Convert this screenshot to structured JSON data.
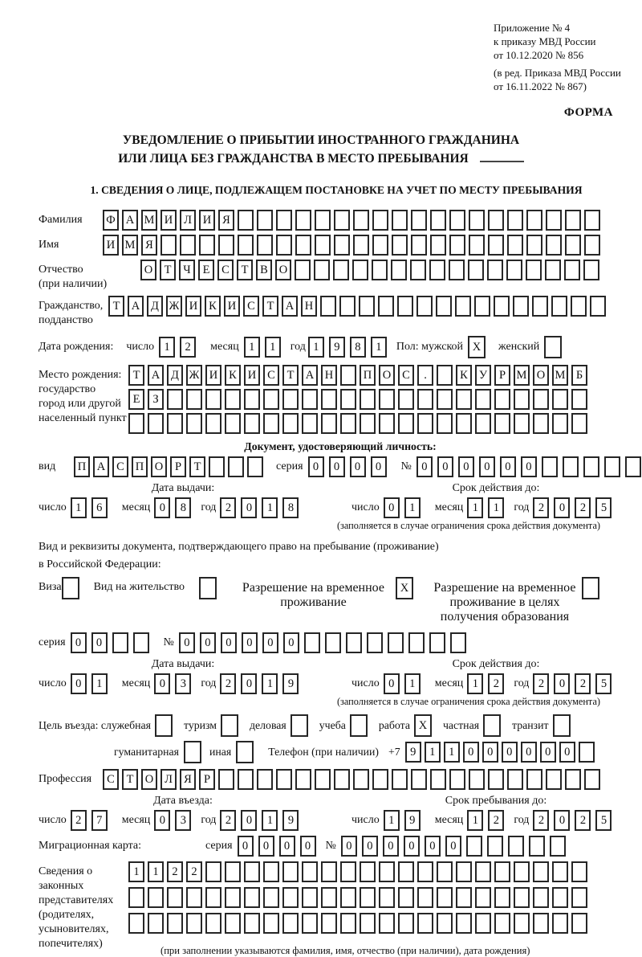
{
  "header": {
    "appendix_lines": [
      "Приложение № 4",
      "к приказу МВД России",
      "от 10.12.2020 № 856"
    ],
    "edition_lines": [
      "(в ред. Приказа МВД России",
      "от 16.11.2022 № 867)"
    ],
    "forma": "ФОРМА"
  },
  "title": {
    "line1": "УВЕДОМЛЕНИЕ О ПРИБЫТИИ ИНОСТРАННОГО ГРАЖДАНИНА",
    "line2": "ИЛИ ЛИЦА БЕЗ ГРАЖДАНСТВА В МЕСТО ПРЕБЫВАНИЯ"
  },
  "section1": {
    "heading": "1. СВЕДЕНИЯ О ЛИЦЕ, ПОДЛЕЖАЩЕМ ПОСТАНОВКЕ НА УЧЕТ ПО МЕСТУ ПРЕБЫВАНИЯ",
    "surname": {
      "label": "Фамилия",
      "boxes": {
        "chars": "ФАМИЛИЯ",
        "len": 26
      }
    },
    "firstname": {
      "label": "Имя",
      "boxes": {
        "chars": "ИМЯ",
        "len": 26
      }
    },
    "patronymic": {
      "label": "Отчество",
      "label2": "(при наличии)",
      "boxes": {
        "chars": "ОТЧЕСТВО",
        "len": 24
      }
    },
    "citizenship": {
      "label": "Гражданство,",
      "label2": "подданство",
      "boxes": {
        "chars": "ТАДЖИКИСТАН",
        "len": 26
      }
    },
    "birth": {
      "label": "Дата рождения:",
      "day_label": "число",
      "day": {
        "chars": "12",
        "len": 2
      },
      "month_label": "месяц",
      "month": {
        "chars": "11",
        "len": 2
      },
      "year_label": "год",
      "year": {
        "chars": "1981",
        "len": 4
      },
      "sex_label": "Пол: мужской",
      "male": {
        "chars": "X",
        "len": 1
      },
      "female_label": "женский",
      "female": {
        "chars": "",
        "len": 1
      }
    },
    "birthplace": {
      "label1": "Место рождения:",
      "label2": "государство",
      "label3": "город или другой",
      "label4": "населенный пункт",
      "row1": {
        "chars": "ТАДЖИКИСТАН ПОС. КУРМОМБ",
        "len": 24
      },
      "row2": {
        "chars": "ЕЗ",
        "len": 24
      },
      "row3": {
        "chars": "",
        "len": 24
      }
    },
    "identity_doc": {
      "heading": "Документ, удостоверяющий личность:",
      "kind_label": "вид",
      "kind": {
        "chars": "ПАСПОРТ",
        "len": 10
      },
      "series_label": "серия",
      "series": {
        "chars": "0000",
        "len": 4
      },
      "number_label": "№",
      "number": {
        "chars": "000000",
        "len": 11
      },
      "issue_heading": "Дата выдачи:",
      "issue_day_label": "число",
      "issue_day": {
        "chars": "16",
        "len": 2
      },
      "issue_month_label": "месяц",
      "issue_month": {
        "chars": "08",
        "len": 2
      },
      "issue_year_label": "год",
      "issue_year": {
        "chars": "2018",
        "len": 4
      },
      "expiry_heading": "Срок действия до:",
      "expiry_day_label": "число",
      "expiry_day": {
        "chars": "01",
        "len": 2
      },
      "expiry_month_label": "месяц",
      "expiry_month": {
        "chars": "11",
        "len": 2
      },
      "expiry_year_label": "год",
      "expiry_year": {
        "chars": "2025",
        "len": 4
      },
      "note": "(заполняется в случае ограничения срока действия документа)"
    },
    "residence_doc": {
      "intro1": "Вид и реквизиты документа, подтверждающего право на пребывание (проживание)",
      "intro2": "в Российской Федерации:",
      "visa_label": "Виза",
      "visa": {
        "chars": "",
        "len": 1
      },
      "residence_permit_label": "Вид на жительство",
      "residence_permit": {
        "chars": "",
        "len": 1
      },
      "temp_permit_label": "Разрешение на временное проживание",
      "temp_permit": {
        "chars": "X",
        "len": 1
      },
      "edu_permit_label": "Разрешение на временное проживание в целях получения образования",
      "edu_permit": {
        "chars": "",
        "len": 1
      },
      "series_label": "серия",
      "series": {
        "chars": "00",
        "len": 4
      },
      "number_label": "№",
      "number": {
        "chars": "000000",
        "len": 14
      },
      "issue_heading": "Дата выдачи:",
      "issue_day_label": "число",
      "issue_day": {
        "chars": "01",
        "len": 2
      },
      "issue_month_label": "месяц",
      "issue_month": {
        "chars": "03",
        "len": 2
      },
      "issue_year_label": "год",
      "issue_year": {
        "chars": "2019",
        "len": 4
      },
      "expiry_heading": "Срок действия до:",
      "expiry_day_label": "число",
      "expiry_day": {
        "chars": "01",
        "len": 2
      },
      "expiry_month_label": "месяц",
      "expiry_month": {
        "chars": "12",
        "len": 2
      },
      "expiry_year_label": "год",
      "expiry_year": {
        "chars": "2025",
        "len": 4
      },
      "note": "(заполняется в случае ограничения срока действия документа)"
    },
    "visit": {
      "label": "Цель въезда: служебная",
      "opt_business": {
        "chars": "",
        "len": 1
      },
      "opt_tourism_label": "туризм",
      "opt_tourism": {
        "chars": "",
        "len": 1
      },
      "opt_commercial_label": "деловая",
      "opt_commercial": {
        "chars": "",
        "len": 1
      },
      "opt_study_label": "учеба",
      "opt_study": {
        "chars": "",
        "len": 1
      },
      "opt_work_label": "работа",
      "opt_work": {
        "chars": "X",
        "len": 1
      },
      "opt_private_label": "частная",
      "opt_private": {
        "chars": "",
        "len": 1
      },
      "opt_transit_label": "транзит",
      "opt_transit": {
        "chars": "",
        "len": 1
      },
      "opt_humanitarian_label": "гуманитарная",
      "opt_humanitarian": {
        "chars": "",
        "len": 1
      },
      "opt_other_label": "иная",
      "opt_other": {
        "chars": "",
        "len": 1
      },
      "phone_label": "Телефон (при наличии)",
      "phone_prefix": "+7",
      "phone": {
        "chars": "911000000",
        "len": 10
      }
    },
    "profession": {
      "label": "Профессия",
      "boxes": {
        "chars": "СТОЛЯР",
        "len": 26
      }
    },
    "entry": {
      "date_heading": "Дата въезда:",
      "day_label": "число",
      "day": {
        "chars": "27",
        "len": 2
      },
      "month_label": "месяц",
      "month": {
        "chars": "03",
        "len": 2
      },
      "year_label": "год",
      "year": {
        "chars": "2019",
        "len": 4
      },
      "stay_heading": "Срок пребывания до:",
      "stay_day_label": "число",
      "stay_day": {
        "chars": "19",
        "len": 2
      },
      "stay_month_label": "месяц",
      "stay_month": {
        "chars": "12",
        "len": 2
      },
      "stay_year_label": "год",
      "stay_year": {
        "chars": "2025",
        "len": 4
      }
    },
    "migration_card": {
      "label": "Миграционная карта:",
      "series_label": "серия",
      "series": {
        "chars": "0000",
        "len": 4
      },
      "number_label": "№",
      "number": {
        "chars": "000000",
        "len": 11
      }
    },
    "representatives": {
      "label1": "Сведения о",
      "label2": "законных",
      "label3": "представителях",
      "label4": "(родителях,",
      "label5": "усыновителях,",
      "label6": "попечителях)",
      "row1": {
        "chars": "1122",
        "len": 24
      },
      "row2": {
        "chars": "",
        "len": 24
      },
      "row3": {
        "chars": "",
        "len": 24
      },
      "note": "(при заполнении указываются фамилия, имя, отчество (при наличии), дата рождения)"
    }
  }
}
